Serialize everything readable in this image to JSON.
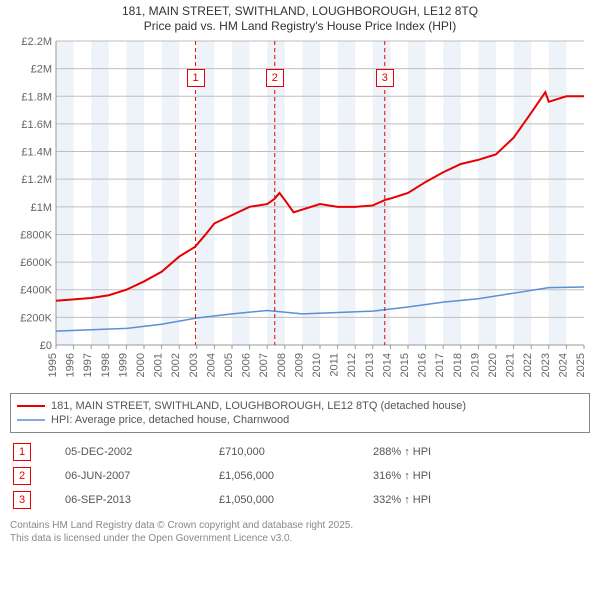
{
  "title": {
    "line1": "181, MAIN STREET, SWITHLAND, LOUGHBOROUGH, LE12 8TQ",
    "line2": "Price paid vs. HM Land Registry's House Price Index (HPI)"
  },
  "legend": {
    "series1_label": "181, MAIN STREET, SWITHLAND, LOUGHBOROUGH, LE12 8TQ (detached house)",
    "series2_label": "HPI: Average price, detached house, Charnwood"
  },
  "markers": [
    {
      "num": "1",
      "date": "05-DEC-2002",
      "price": "£710,000",
      "hpi": "288% ↑ HPI",
      "year": 2002.93
    },
    {
      "num": "2",
      "date": "06-JUN-2007",
      "price": "£1,056,000",
      "hpi": "316% ↑ HPI",
      "year": 2007.43
    },
    {
      "num": "3",
      "date": "06-SEP-2013",
      "price": "£1,050,000",
      "hpi": "332% ↑ HPI",
      "year": 2013.68
    }
  ],
  "footer": {
    "line1": "Contains HM Land Registry data © Crown copyright and database right 2025.",
    "line2": "This data is licensed under the Open Government Licence v3.0."
  },
  "chart": {
    "type": "line",
    "background_color": "#ffffff",
    "grid_color": "#bfbfbf",
    "axis_color": "#999999",
    "x_axis": {
      "min": 1995,
      "max": 2025,
      "tick_step": 1,
      "label_fontsize": 11,
      "label_rotation": -90
    },
    "y_axis": {
      "min": 0,
      "max": 2200000,
      "tick_step": 200000,
      "labels": [
        "£0",
        "£200K",
        "£400K",
        "£600K",
        "£800K",
        "£1M",
        "£1.2M",
        "£1.4M",
        "£1.6M",
        "£1.8M",
        "£2M",
        "£2.2M"
      ],
      "label_fontsize": 11
    },
    "vertical_bands": {
      "color": "#eef3f9",
      "years": [
        1995,
        1997,
        1999,
        2001,
        2003,
        2005,
        2007,
        2009,
        2011,
        2013,
        2015,
        2017,
        2019,
        2021,
        2023,
        2025
      ]
    },
    "series": [
      {
        "name": "property_price",
        "color": "#e60000",
        "line_width": 2,
        "data": [
          [
            1995,
            320000
          ],
          [
            1996,
            330000
          ],
          [
            1997,
            340000
          ],
          [
            1998,
            360000
          ],
          [
            1999,
            400000
          ],
          [
            2000,
            460000
          ],
          [
            2001,
            530000
          ],
          [
            2002,
            640000
          ],
          [
            2002.9,
            710000
          ],
          [
            2003.5,
            800000
          ],
          [
            2004,
            880000
          ],
          [
            2005,
            940000
          ],
          [
            2006,
            1000000
          ],
          [
            2007,
            1020000
          ],
          [
            2007.4,
            1056000
          ],
          [
            2007.7,
            1100000
          ],
          [
            2008,
            1050000
          ],
          [
            2008.5,
            960000
          ],
          [
            2009,
            980000
          ],
          [
            2010,
            1020000
          ],
          [
            2011,
            1000000
          ],
          [
            2012,
            1000000
          ],
          [
            2013,
            1010000
          ],
          [
            2013.7,
            1050000
          ],
          [
            2014,
            1060000
          ],
          [
            2015,
            1100000
          ],
          [
            2016,
            1180000
          ],
          [
            2017,
            1250000
          ],
          [
            2018,
            1310000
          ],
          [
            2019,
            1340000
          ],
          [
            2020,
            1380000
          ],
          [
            2021,
            1500000
          ],
          [
            2022,
            1680000
          ],
          [
            2022.8,
            1830000
          ],
          [
            2023,
            1760000
          ],
          [
            2024,
            1800000
          ],
          [
            2025,
            1800000
          ]
        ]
      },
      {
        "name": "hpi_charnwood",
        "color": "#5b8fd6",
        "line_width": 1.5,
        "data": [
          [
            1995,
            100000
          ],
          [
            1997,
            110000
          ],
          [
            1999,
            120000
          ],
          [
            2001,
            150000
          ],
          [
            2003,
            195000
          ],
          [
            2005,
            225000
          ],
          [
            2007,
            250000
          ],
          [
            2009,
            225000
          ],
          [
            2011,
            235000
          ],
          [
            2013,
            245000
          ],
          [
            2015,
            275000
          ],
          [
            2017,
            310000
          ],
          [
            2019,
            335000
          ],
          [
            2021,
            375000
          ],
          [
            2023,
            415000
          ],
          [
            2025,
            420000
          ]
        ]
      }
    ],
    "marker_box": {
      "border_color": "#e60000",
      "text_color": "#e60000",
      "fill": "#ffffff",
      "size": 16
    }
  }
}
